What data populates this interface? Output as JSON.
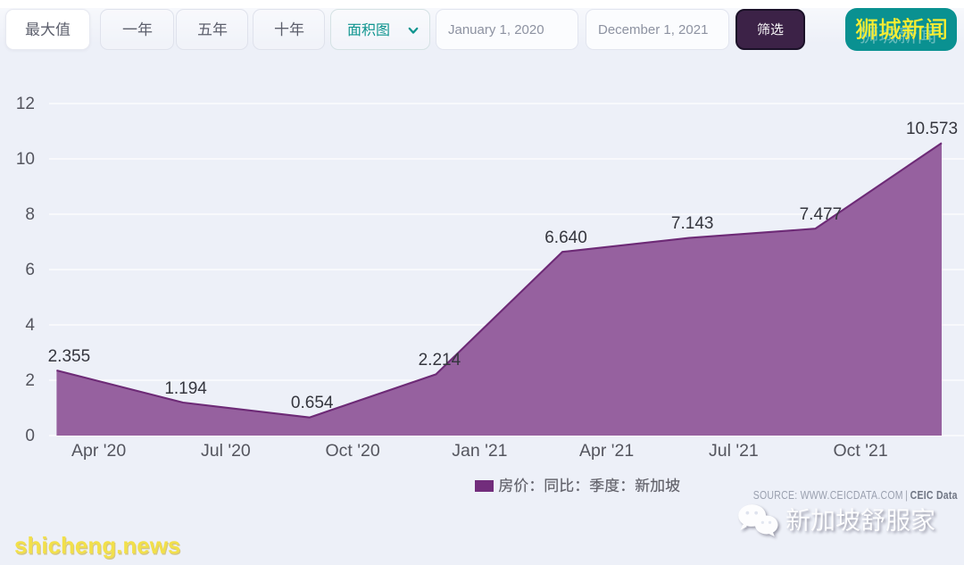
{
  "toolbar": {
    "range_buttons": [
      {
        "label": "最大值",
        "selected": true
      },
      {
        "label": "一年",
        "selected": false
      },
      {
        "label": "五年",
        "selected": false
      },
      {
        "label": "十年",
        "selected": false
      }
    ],
    "chart_type_select": {
      "value": "面积图"
    },
    "date_from": {
      "value": "January 1, 2020"
    },
    "date_to": {
      "value": "December 1, 2021"
    },
    "filter_button": {
      "label": "筛选"
    },
    "site_badge": {
      "label": "狮城新闻"
    }
  },
  "chart_data": {
    "type": "area",
    "title": "",
    "series": [
      {
        "name": "房价：同比：季度：新加坡",
        "x": [
          "Mar 2020",
          "Jun 2020",
          "Sep 2020",
          "Dec 2020",
          "Mar 2021",
          "Jun 2021",
          "Sep 2021",
          "Dec 2021"
        ],
        "values": [
          2.355,
          1.194,
          0.654,
          2.214,
          6.64,
          7.143,
          7.477,
          10.573
        ]
      }
    ],
    "data_labels": [
      "2.355",
      "1.194",
      "0.654",
      "2.214",
      "6.640",
      "7.143",
      "7.477",
      "10.573"
    ],
    "x_tick_labels": [
      "Apr '20",
      "Jul '20",
      "Oct '20",
      "Jan '21",
      "Apr '21",
      "Jul '21",
      "Oct '21"
    ],
    "y_tick_labels": [
      "0",
      "2",
      "4",
      "6",
      "8",
      "10",
      "12"
    ],
    "ylim": [
      0,
      12
    ],
    "grid": "horizontal",
    "legend_position": "bottom",
    "colors": {
      "area_fill": "#96619f",
      "area_line": "#6d2a76",
      "legend_swatch": "#722d7c"
    }
  },
  "legend": {
    "label": "房价：同比：季度：新加坡"
  },
  "source_note": {
    "prefix": "SOURCE: WWW.CEICDATA.COM",
    "separator": "|",
    "brand": "CEIC Data"
  },
  "watermarks": {
    "site_url": "shicheng.news",
    "wechat_account": "新加坡舒服家",
    "badge_ghost": "狮城新闻"
  }
}
